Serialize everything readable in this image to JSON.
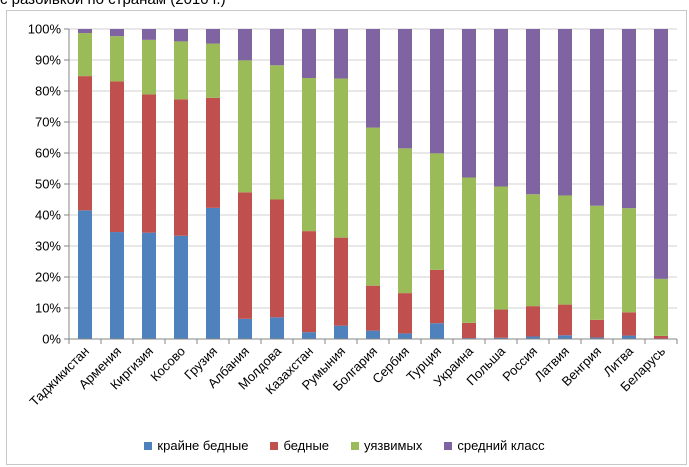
{
  "header": {
    "text": "с разбивкой по странам (2010 г.)"
  },
  "colors": {
    "extreme_poor": "#4f81bd",
    "poor": "#c0504d",
    "vulnerable": "#9bbb59",
    "middle_class": "#8064a2",
    "grid": "#d0d0d0",
    "axis": "#868686"
  },
  "chart_data": {
    "type": "bar",
    "stacked": true,
    "percent": true,
    "categories": [
      "Таджикистан",
      "Армения",
      "Киргизия",
      "Косово",
      "Грузия",
      "Албания",
      "Молдова",
      "Казахстан",
      "Румыния",
      "Болгария",
      "Сербия",
      "Турция",
      "Украина",
      "Польша",
      "Россия",
      "Латвия",
      "Венгрия",
      "Литва",
      "Беларусь"
    ],
    "series": [
      {
        "name": "крайне бедные",
        "values": [
          41.5,
          34.5,
          34.3,
          33.3,
          42.3,
          6.5,
          7.0,
          2.2,
          4.3,
          2.7,
          1.8,
          5.1,
          0.3,
          0.4,
          0.8,
          1.2,
          0.5,
          1.1,
          0.1
        ]
      },
      {
        "name": "бедные",
        "values": [
          43.3,
          48.6,
          44.6,
          44.0,
          35.5,
          40.8,
          38.0,
          32.6,
          28.4,
          14.5,
          13.0,
          17.2,
          4.9,
          9.1,
          9.8,
          9.9,
          5.7,
          7.5,
          0.9
        ]
      },
      {
        "name": "уязвимых",
        "values": [
          13.9,
          14.6,
          17.6,
          18.7,
          17.5,
          42.6,
          43.3,
          49.4,
          51.3,
          51.0,
          46.7,
          37.6,
          46.9,
          39.7,
          36.1,
          35.2,
          36.8,
          33.6,
          18.4
        ]
      },
      {
        "name": "средний класс",
        "values": [
          1.3,
          2.3,
          3.5,
          4.0,
          4.7,
          10.1,
          11.7,
          15.8,
          16.0,
          31.8,
          38.5,
          40.1,
          47.9,
          50.8,
          53.3,
          53.7,
          57.0,
          57.8,
          80.6
        ]
      }
    ],
    "y_ticks": [
      "0%",
      "10%",
      "20%",
      "30%",
      "40%",
      "50%",
      "60%",
      "70%",
      "80%",
      "90%",
      "100%"
    ],
    "ylim": [
      0,
      100
    ],
    "grid": true,
    "legend_position": "bottom"
  }
}
